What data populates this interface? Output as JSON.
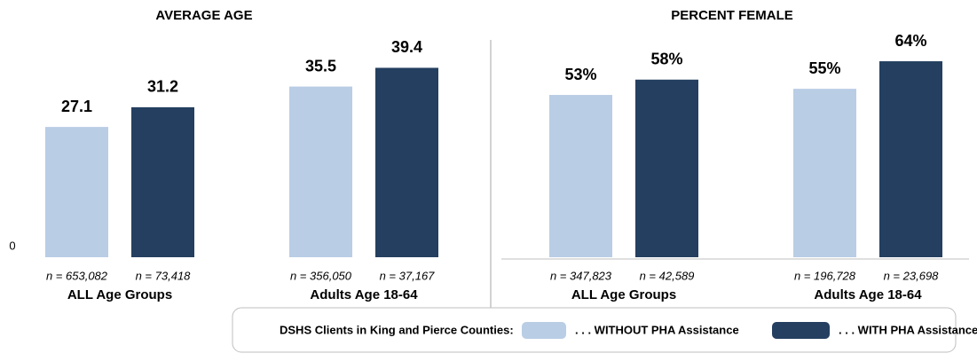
{
  "chart_data": [
    {
      "type": "bar",
      "title": "AVERAGE AGE",
      "categories": [
        "ALL Age Groups",
        "Adults Age 18-64"
      ],
      "series": [
        {
          "name": ". . . WITHOUT PHA Assistance",
          "color": "#b9cde5",
          "values": [
            27.1,
            35.5
          ],
          "sample_labels": [
            "n = 653,082",
            "n = 356,050"
          ]
        },
        {
          "name": ". . . WITH PHA Assistance",
          "color": "#243f60",
          "values": [
            31.2,
            39.4
          ],
          "sample_labels": [
            "n = 73,418",
            "n = 37,167"
          ]
        }
      ],
      "ylim": [
        0,
        50
      ],
      "yticks": [
        0
      ]
    },
    {
      "type": "bar",
      "title": "PERCENT FEMALE",
      "categories": [
        "ALL Age Groups",
        "Adults Age 18-64"
      ],
      "series": [
        {
          "color": "#b9cde5",
          "values": [
            53,
            55
          ],
          "value_labels": [
            "53%",
            "55%"
          ],
          "sample_labels": [
            "n = 347,823",
            "n = 196,728"
          ]
        },
        {
          "color": "#243f60",
          "values": [
            58,
            64
          ],
          "value_labels": [
            "58%",
            "64%"
          ],
          "sample_labels": [
            "n = 42,589",
            "n = 23,698"
          ]
        }
      ],
      "ylim": [
        0,
        78.5
      ],
      "yticks": []
    }
  ],
  "legend": {
    "title": "DSHS Clients in King and Pierce Counties:"
  }
}
